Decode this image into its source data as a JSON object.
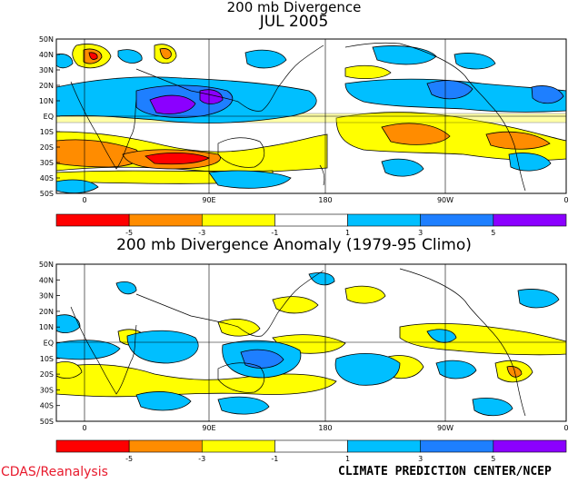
{
  "titles": {
    "top_line1": "200 mb Divergence",
    "top_line2": "JUL 2005",
    "bottom": "200 mb Divergence Anomaly (1979-95 Climo)"
  },
  "lat_labels": [
    "50N",
    "40N",
    "30N",
    "20N",
    "10N",
    "EQ",
    "10S",
    "20S",
    "30S",
    "40S",
    "50S"
  ],
  "lon_labels": [
    "0",
    "90E",
    "180",
    "90W",
    "0"
  ],
  "colorbar": {
    "colors": [
      "#ff0000",
      "#ff8c00",
      "#ffff00",
      "#ffffff",
      "#00bfff",
      "#1e7fff",
      "#8b00ff"
    ],
    "ticks": [
      "-5",
      "-3",
      "-1",
      "1",
      "3",
      "5"
    ]
  },
  "footer": {
    "left": "CDAS/Reanalysis",
    "right": "CLIMATE PREDICTION CENTER/NCEP"
  },
  "chart_data": [
    {
      "type": "heatmap",
      "title": "200 mb Divergence JUL 2005",
      "lat_range": [
        "50S",
        "50N"
      ],
      "lon_range": [
        "0",
        "0"
      ],
      "scale": [
        -5,
        -3,
        -1,
        1,
        3,
        5
      ]
    },
    {
      "type": "heatmap",
      "title": "200 mb Divergence Anomaly (1979-95 Climo)",
      "lat_range": [
        "50S",
        "50N"
      ],
      "lon_range": [
        "0",
        "0"
      ],
      "scale": [
        -5,
        -3,
        -1,
        1,
        3,
        5
      ]
    }
  ]
}
